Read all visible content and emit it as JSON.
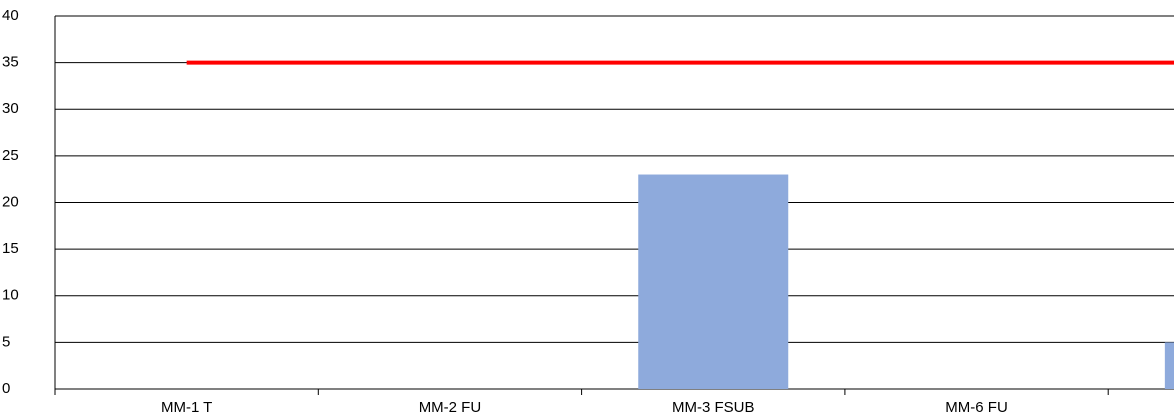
{
  "chart_data": {
    "type": "combo",
    "categories": [
      "MM-1 T",
      "MM-2 FU",
      "MM-3 FSUB",
      "MM-6 FU",
      null
    ],
    "series": [
      {
        "type": "bar",
        "color": "#8eaadc",
        "values": [
          0,
          0,
          23,
          0,
          5
        ]
      },
      {
        "type": "line",
        "color": "#ff0000",
        "values": [
          35,
          35,
          35,
          35,
          35
        ]
      }
    ],
    "ylim": [
      0,
      40
    ],
    "yticks": [
      0,
      5,
      10,
      15,
      20,
      25,
      30,
      35,
      40
    ],
    "grid": true
  }
}
